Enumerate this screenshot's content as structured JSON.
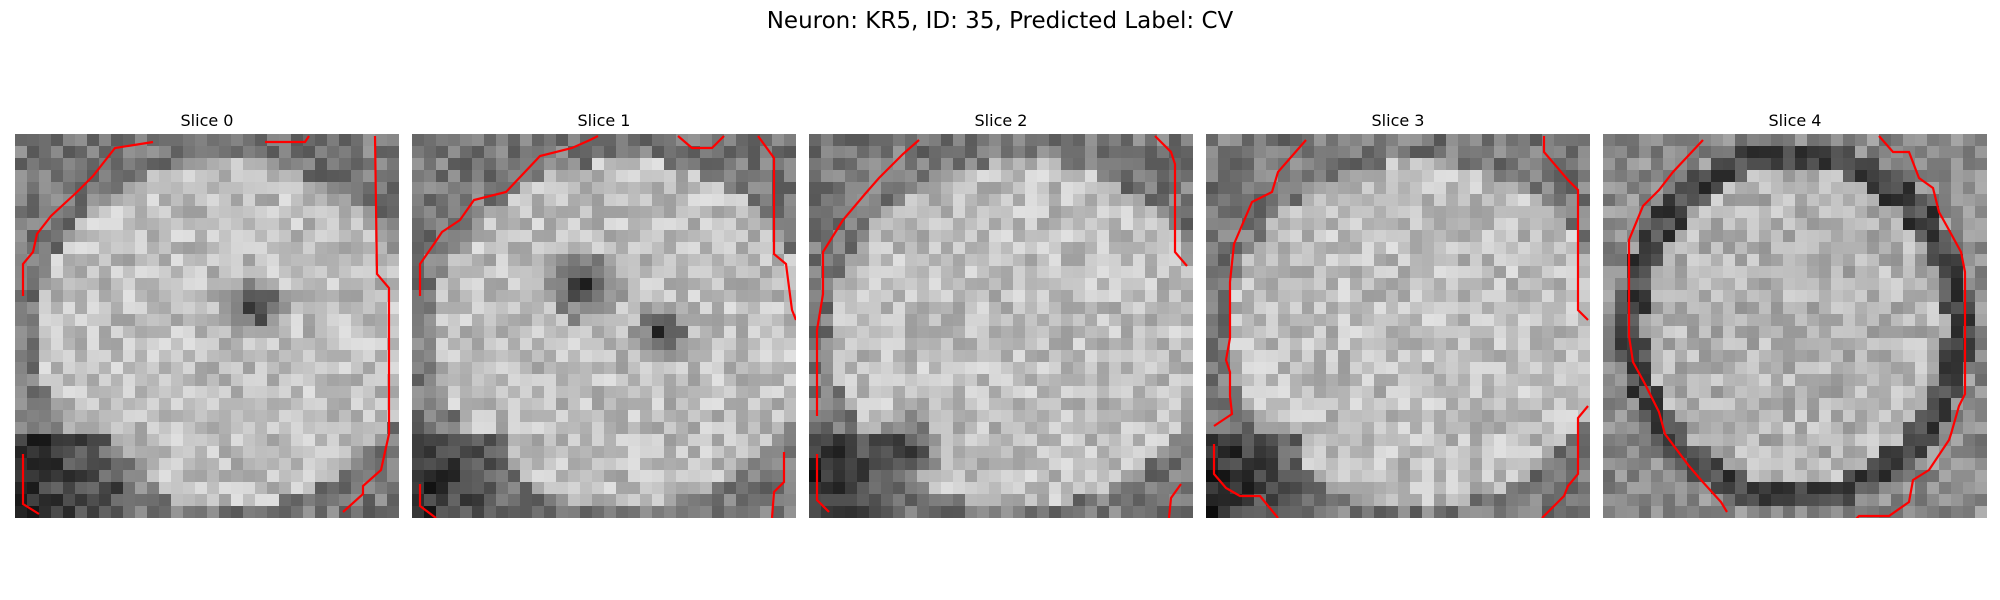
{
  "figure": {
    "title": "Neuron: KR5, ID: 35, Predicted Label: CV"
  },
  "panels": [
    {
      "title": "Slice 0",
      "contour_color": "#ff0000",
      "dark_spots": [
        [
          0.63,
          0.45,
          0.09
        ],
        [
          0.25,
          0.93,
          0.12
        ]
      ],
      "dark_corner": "bottom-left",
      "seed": 11
    },
    {
      "title": "Slice 1",
      "contour_color": "#ff0000",
      "dark_spots": [
        [
          0.45,
          0.4,
          0.1
        ],
        [
          0.65,
          0.52,
          0.08
        ]
      ],
      "dark_corner": "bottom-left",
      "seed": 23
    },
    {
      "title": "Slice 2",
      "contour_color": "#ff0000",
      "dark_spots": [
        [
          0.25,
          0.82,
          0.1
        ]
      ],
      "dark_corner": "bottom-left",
      "seed": 37
    },
    {
      "title": "Slice 3",
      "contour_color": "#ff0000",
      "dark_spots": [
        [
          0.12,
          0.92,
          0.12
        ]
      ],
      "dark_corner": "bottom-left",
      "seed": 41
    },
    {
      "title": "Slice 4",
      "contour_color": "#ff0000",
      "dark_spots": [],
      "dark_corner": "ring",
      "seed": 53
    }
  ]
}
